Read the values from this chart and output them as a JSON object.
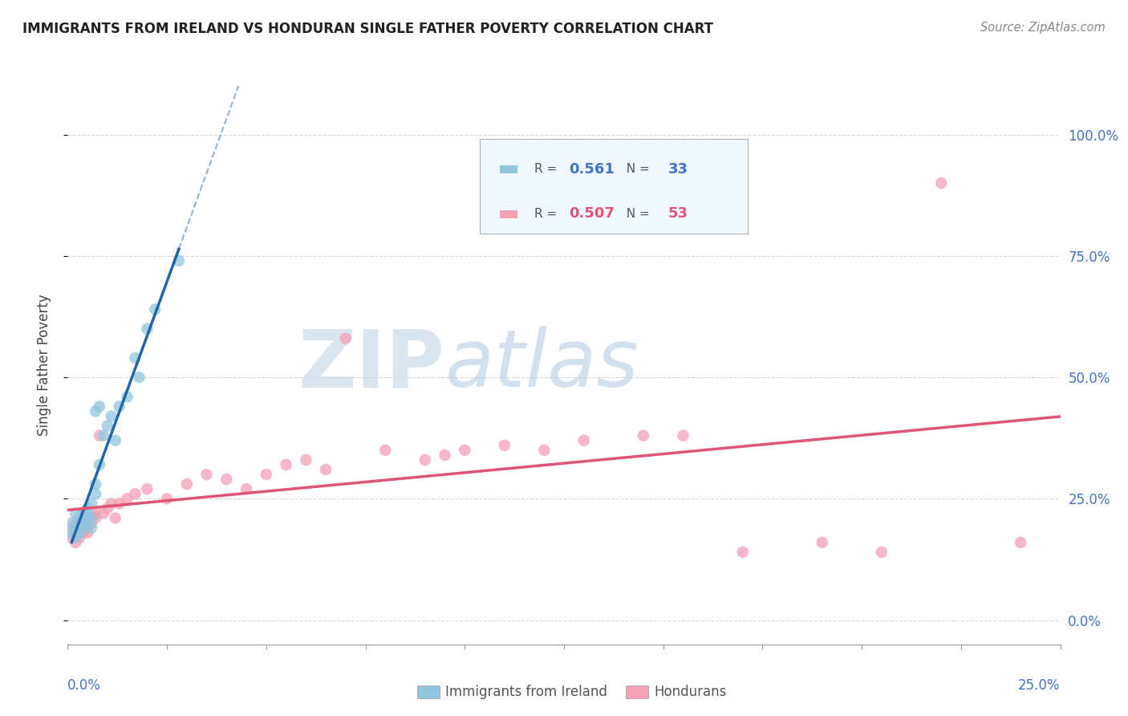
{
  "title": "IMMIGRANTS FROM IRELAND VS HONDURAN SINGLE FATHER POVERTY CORRELATION CHART",
  "source": "Source: ZipAtlas.com",
  "ylabel": "Single Father Poverty",
  "right_yticks": [
    0.0,
    0.25,
    0.5,
    0.75,
    1.0
  ],
  "right_yticklabels": [
    "0.0%",
    "25.0%",
    "50.0%",
    "75.0%",
    "100.0%"
  ],
  "xlim": [
    0.0,
    0.25
  ],
  "ylim": [
    -0.05,
    1.1
  ],
  "blue_R": 0.561,
  "blue_N": 33,
  "pink_R": 0.507,
  "pink_N": 53,
  "blue_color": "#92c5de",
  "pink_color": "#f4a0b5",
  "blue_line_color": "#2166ac",
  "pink_line_color": "#e05575",
  "watermark_zip": "ZIP",
  "watermark_atlas": "atlas",
  "grid_color": "#cccccc",
  "blue_x": [
    0.001,
    0.001,
    0.002,
    0.002,
    0.002,
    0.003,
    0.003,
    0.003,
    0.004,
    0.004,
    0.004,
    0.005,
    0.005,
    0.005,
    0.006,
    0.006,
    0.006,
    0.007,
    0.007,
    0.007,
    0.008,
    0.008,
    0.009,
    0.01,
    0.011,
    0.012,
    0.013,
    0.015,
    0.017,
    0.018,
    0.02,
    0.022,
    0.028
  ],
  "blue_y": [
    0.18,
    0.2,
    0.17,
    0.19,
    0.22,
    0.21,
    0.18,
    0.2,
    0.22,
    0.19,
    0.21,
    0.23,
    0.2,
    0.22,
    0.24,
    0.21,
    0.19,
    0.28,
    0.26,
    0.43,
    0.32,
    0.44,
    0.38,
    0.4,
    0.42,
    0.37,
    0.44,
    0.46,
    0.54,
    0.5,
    0.6,
    0.64,
    0.74
  ],
  "pink_x": [
    0.001,
    0.001,
    0.002,
    0.002,
    0.002,
    0.003,
    0.003,
    0.003,
    0.004,
    0.004,
    0.004,
    0.004,
    0.005,
    0.005,
    0.005,
    0.005,
    0.006,
    0.006,
    0.007,
    0.007,
    0.008,
    0.009,
    0.01,
    0.011,
    0.012,
    0.013,
    0.015,
    0.017,
    0.02,
    0.025,
    0.03,
    0.035,
    0.04,
    0.045,
    0.05,
    0.055,
    0.06,
    0.065,
    0.07,
    0.08,
    0.09,
    0.095,
    0.1,
    0.11,
    0.12,
    0.13,
    0.145,
    0.155,
    0.17,
    0.19,
    0.205,
    0.22,
    0.24
  ],
  "pink_y": [
    0.17,
    0.19,
    0.16,
    0.18,
    0.2,
    0.18,
    0.17,
    0.19,
    0.2,
    0.18,
    0.2,
    0.22,
    0.21,
    0.18,
    0.2,
    0.19,
    0.22,
    0.2,
    0.21,
    0.22,
    0.38,
    0.22,
    0.23,
    0.24,
    0.21,
    0.24,
    0.25,
    0.26,
    0.27,
    0.25,
    0.28,
    0.3,
    0.29,
    0.27,
    0.3,
    0.32,
    0.33,
    0.31,
    0.58,
    0.35,
    0.33,
    0.34,
    0.35,
    0.36,
    0.35,
    0.37,
    0.38,
    0.38,
    0.14,
    0.16,
    0.14,
    0.9,
    0.16
  ],
  "blue_trendline_x": [
    0.001,
    0.028
  ],
  "pink_trendline_x": [
    0.0,
    0.25
  ]
}
